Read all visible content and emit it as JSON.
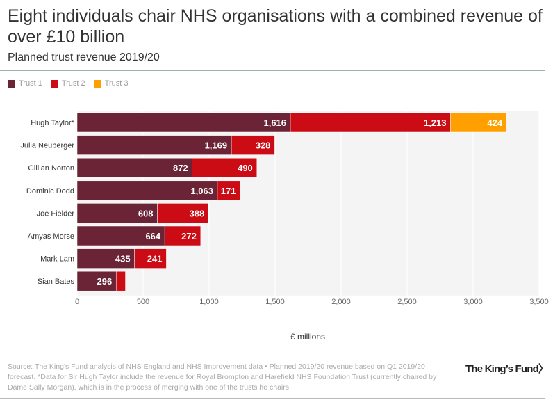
{
  "title": "Eight individuals chair NHS organisations with a combined revenue of over £10 billion",
  "subtitle": "Planned trust revenue 2019/20",
  "footer": {
    "source": "Source: The King's Fund analysis of NHS England and NHS Improvement data • Planned 2019/20 revenue based on Q1 2019/20 forecast. *Data for Sir Hugh Taylor include the revenue for Royal Brompton and Harefield NHS Foundation Trust (currently chaired by Dame Sally Morgan), which is in the process of merging with one of the trusts he chairs.",
    "logo": "The King's Fund>"
  },
  "chart_data": {
    "type": "bar",
    "orientation": "horizontal",
    "stacked": true,
    "categories": [
      "Hugh Taylor*",
      "Julia Neuberger",
      "Gillian Norton",
      "Dominic Dodd",
      "Joe Fielder",
      "Amyas Morse",
      "Mark Lam",
      "Sian Bates"
    ],
    "series": [
      {
        "name": "Trust 1",
        "color": "#6b2336",
        "values": [
          1616,
          1169,
          872,
          1063,
          608,
          664,
          435,
          296
        ]
      },
      {
        "name": "Trust 2",
        "color": "#cc0c14",
        "values": [
          1213,
          328,
          490,
          171,
          388,
          272,
          241,
          70
        ]
      },
      {
        "name": "Trust 3",
        "color": "#ff9f00",
        "values": [
          424,
          null,
          null,
          null,
          null,
          null,
          null,
          null
        ]
      }
    ],
    "labelled": [
      [
        true,
        true,
        true,
        true,
        true,
        true,
        true,
        true
      ],
      [
        true,
        true,
        true,
        true,
        true,
        true,
        true,
        false
      ],
      [
        true,
        false,
        false,
        false,
        false,
        false,
        false,
        false
      ]
    ],
    "xlabel": "£ millions",
    "xlim": [
      0,
      3500
    ],
    "xticks": [
      "0",
      "500",
      "1,000",
      "1,500",
      "2,000",
      "2,500",
      "3,000",
      "3,500"
    ],
    "grid": true,
    "legend": "top-left"
  }
}
